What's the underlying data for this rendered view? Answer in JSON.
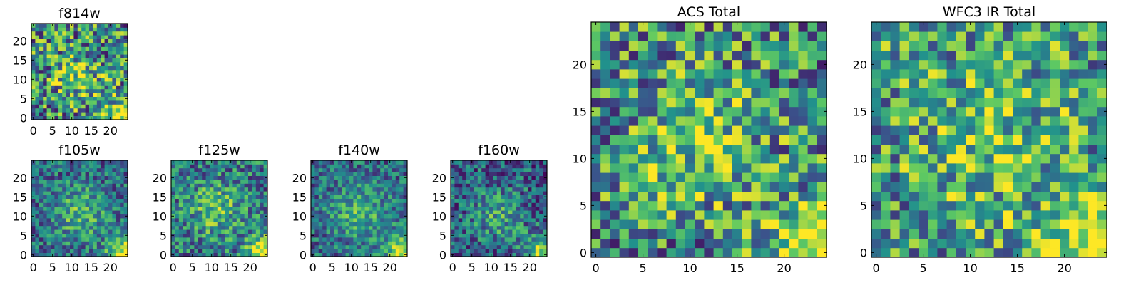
{
  "figure": {
    "colormap": "viridis",
    "colors": [
      "#440154",
      "#3b528b",
      "#21918c",
      "#5ec962",
      "#fde725"
    ],
    "background": "#ffffff"
  },
  "chart_data": [
    {
      "type": "heatmap",
      "id": "f814w",
      "title": "f814w",
      "grid": [
        25,
        25
      ],
      "xlim": [
        -0.5,
        24.5
      ],
      "ylim": [
        -0.5,
        24.5
      ],
      "xticks": [
        0,
        5,
        10,
        15,
        20
      ],
      "yticks": [
        0,
        5,
        10,
        15,
        20
      ],
      "seed": 11,
      "pattern": {
        "noise": 0.45,
        "blob": {
          "cx": 11,
          "cy": 11,
          "sigma": 4.5,
          "amp": 0.28
        },
        "corner": {
          "cx": 24,
          "cy": 0,
          "sigma": 3.5,
          "amp": 0.65
        },
        "base": 0.48
      }
    },
    {
      "type": "heatmap",
      "id": "f105w",
      "title": "f105w",
      "grid": [
        25,
        25
      ],
      "xlim": [
        -0.5,
        24.5
      ],
      "ylim": [
        -0.5,
        24.5
      ],
      "xticks": [
        0,
        5,
        10,
        15,
        20
      ],
      "yticks": [
        0,
        5,
        10,
        15,
        20
      ],
      "seed": 23,
      "pattern": {
        "noise": 0.28,
        "blob": {
          "cx": 12,
          "cy": 11,
          "sigma": 5,
          "amp": 0.32
        },
        "corner": {
          "cx": 24,
          "cy": 0,
          "sigma": 3.5,
          "amp": 0.6
        },
        "base": 0.35
      }
    },
    {
      "type": "heatmap",
      "id": "f125w",
      "title": "f125w",
      "grid": [
        25,
        25
      ],
      "xlim": [
        -0.5,
        24.5
      ],
      "ylim": [
        -0.5,
        24.5
      ],
      "xticks": [
        0,
        5,
        10,
        15,
        20
      ],
      "yticks": [
        0,
        5,
        10,
        15,
        20
      ],
      "seed": 37,
      "pattern": {
        "noise": 0.32,
        "blob": {
          "cx": 11,
          "cy": 12,
          "sigma": 5,
          "amp": 0.3
        },
        "corner": {
          "cx": 24,
          "cy": 0,
          "sigma": 3.5,
          "amp": 0.6
        },
        "base": 0.4
      }
    },
    {
      "type": "heatmap",
      "id": "f140w",
      "title": "f140w",
      "grid": [
        25,
        25
      ],
      "xlim": [
        -0.5,
        24.5
      ],
      "ylim": [
        -0.5,
        24.5
      ],
      "xticks": [
        0,
        5,
        10,
        15,
        20
      ],
      "yticks": [
        0,
        5,
        10,
        15,
        20
      ],
      "seed": 41,
      "pattern": {
        "noise": 0.26,
        "blob": {
          "cx": 12,
          "cy": 11,
          "sigma": 5,
          "amp": 0.3
        },
        "corner": {
          "cx": 24,
          "cy": 0,
          "sigma": 3.5,
          "amp": 0.6
        },
        "base": 0.35
      }
    },
    {
      "type": "heatmap",
      "id": "f160w",
      "title": "f160w",
      "grid": [
        25,
        25
      ],
      "xlim": [
        -0.5,
        24.5
      ],
      "ylim": [
        -0.5,
        24.5
      ],
      "xticks": [
        0,
        5,
        10,
        15,
        20
      ],
      "yticks": [
        0,
        5,
        10,
        15,
        20
      ],
      "seed": 53,
      "pattern": {
        "noise": 0.3,
        "blob": {
          "cx": 12,
          "cy": 10,
          "sigma": 5,
          "amp": 0.28
        },
        "corner": {
          "cx": 24,
          "cy": 0,
          "sigma": 3.5,
          "amp": 0.62
        },
        "base": 0.3
      }
    },
    {
      "type": "heatmap",
      "id": "acs-total",
      "title": "ACS Total",
      "grid": [
        25,
        25
      ],
      "xlim": [
        -0.5,
        24.5
      ],
      "ylim": [
        -0.5,
        24.5
      ],
      "xticks": [
        0,
        5,
        10,
        15,
        20
      ],
      "yticks": [
        0,
        5,
        10,
        15,
        20
      ],
      "seed": 67,
      "pattern": {
        "noise": 0.42,
        "blob": {
          "cx": 11,
          "cy": 12,
          "sigma": 4.5,
          "amp": 0.3
        },
        "corner": {
          "cx": 24,
          "cy": 0,
          "sigma": 3.5,
          "amp": 0.65
        },
        "base": 0.5
      }
    },
    {
      "type": "heatmap",
      "id": "wfc3-ir-total",
      "title": "WFC3 IR Total",
      "grid": [
        25,
        25
      ],
      "xlim": [
        -0.5,
        24.5
      ],
      "ylim": [
        -0.5,
        24.5
      ],
      "xticks": [
        0,
        5,
        10,
        15,
        20
      ],
      "yticks": [
        0,
        5,
        10,
        15,
        20
      ],
      "seed": 79,
      "pattern": {
        "noise": 0.4,
        "blob": {
          "cx": 12,
          "cy": 12,
          "sigma": 5,
          "amp": 0.2
        },
        "corner": {
          "cx": 23,
          "cy": 0,
          "sigma": 3.5,
          "amp": 0.55
        },
        "base": 0.55
      }
    }
  ]
}
